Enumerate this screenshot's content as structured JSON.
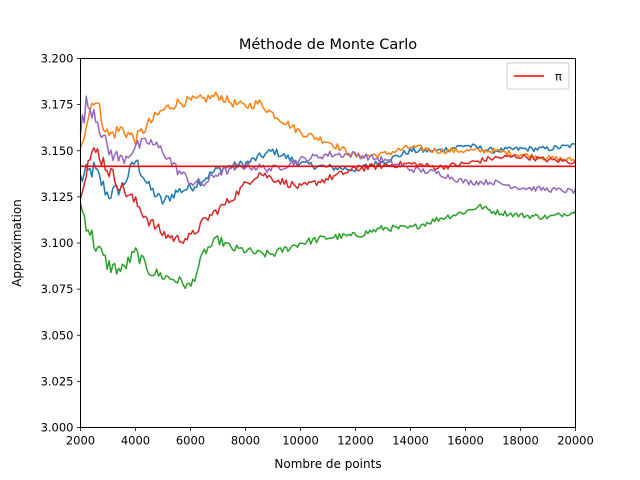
{
  "chart_data": {
    "type": "line",
    "title": "Méthode de Monte Carlo",
    "xlabel": "Nombre de points",
    "ylabel": "Approximation",
    "xlim": [
      2000,
      20000
    ],
    "ylim": [
      3.0,
      3.2
    ],
    "x_ticks": [
      2000,
      4000,
      6000,
      8000,
      10000,
      12000,
      14000,
      16000,
      18000,
      20000
    ],
    "y_ticks": [
      3.0,
      3.025,
      3.05,
      3.075,
      3.1,
      3.125,
      3.15,
      3.175,
      3.2
    ],
    "y_tick_labels": [
      "3.000",
      "3.025",
      "3.050",
      "3.075",
      "3.100",
      "3.125",
      "3.150",
      "3.175",
      "3.200"
    ],
    "grid": false,
    "legend_position": "top-right",
    "reference_line": {
      "label": "π",
      "y": 3.14159,
      "color": "#ff0000"
    },
    "series": [
      {
        "color": "#1f77b4",
        "x": [
          2000,
          2500,
          3000,
          3500,
          4000,
          4500,
          5000,
          5500,
          6000,
          6500,
          7000,
          8000,
          9000,
          10000,
          11000,
          12000,
          13000,
          14000,
          15000,
          16000,
          17000,
          18000,
          19000,
          20000
        ],
        "values": [
          3.135,
          3.14,
          3.126,
          3.13,
          3.145,
          3.13,
          3.122,
          3.128,
          3.13,
          3.135,
          3.14,
          3.143,
          3.15,
          3.143,
          3.141,
          3.14,
          3.144,
          3.15,
          3.15,
          3.153,
          3.15,
          3.151,
          3.151,
          3.153
        ]
      },
      {
        "color": "#ff7f0e",
        "x": [
          2000,
          2300,
          2500,
          3000,
          3500,
          4000,
          4500,
          5000,
          5500,
          6000,
          6500,
          7000,
          7500,
          8000,
          8500,
          9000,
          10000,
          11000,
          12000,
          13000,
          14000,
          15000,
          16000,
          17000,
          18000,
          19000,
          20000
        ],
        "values": [
          3.155,
          3.17,
          3.18,
          3.158,
          3.162,
          3.156,
          3.165,
          3.172,
          3.176,
          3.177,
          3.178,
          3.18,
          3.176,
          3.174,
          3.176,
          3.17,
          3.16,
          3.155,
          3.147,
          3.148,
          3.152,
          3.15,
          3.15,
          3.15,
          3.148,
          3.146,
          3.145
        ]
      },
      {
        "color": "#2ca02c",
        "x": [
          2000,
          2200,
          2500,
          3000,
          3500,
          4000,
          4500,
          5000,
          5500,
          6000,
          6500,
          7000,
          7500,
          8000,
          8500,
          9000,
          9500,
          10000,
          11000,
          12000,
          13000,
          14000,
          15000,
          16000,
          16500,
          17000,
          18000,
          19000,
          20000
        ],
        "values": [
          3.12,
          3.112,
          3.1,
          3.088,
          3.085,
          3.095,
          3.085,
          3.082,
          3.08,
          3.076,
          3.095,
          3.102,
          3.097,
          3.096,
          3.094,
          3.094,
          3.097,
          3.1,
          3.103,
          3.104,
          3.108,
          3.108,
          3.113,
          3.117,
          3.12,
          3.117,
          3.115,
          3.114,
          3.117
        ]
      },
      {
        "color": "#d62728",
        "x": [
          2000,
          2300,
          2600,
          3000,
          3500,
          4000,
          4500,
          5000,
          5500,
          6000,
          6500,
          7000,
          7500,
          8000,
          8500,
          9000,
          10000,
          11000,
          12000,
          13000,
          14000,
          15000,
          16000,
          17000,
          18000,
          19000,
          20000
        ],
        "values": [
          3.13,
          3.145,
          3.15,
          3.14,
          3.13,
          3.122,
          3.112,
          3.105,
          3.102,
          3.103,
          3.112,
          3.118,
          3.124,
          3.132,
          3.138,
          3.135,
          3.13,
          3.135,
          3.14,
          3.142,
          3.143,
          3.141,
          3.143,
          3.146,
          3.147,
          3.145,
          3.144
        ]
      },
      {
        "color": "#9467bd",
        "x": [
          2000,
          2200,
          2500,
          3000,
          3500,
          4000,
          4500,
          5000,
          5500,
          6000,
          6500,
          7000,
          7500,
          8000,
          9000,
          10000,
          11000,
          12000,
          13000,
          14000,
          15000,
          16000,
          17000,
          18000,
          19000,
          20000
        ],
        "values": [
          3.16,
          3.175,
          3.172,
          3.15,
          3.145,
          3.152,
          3.155,
          3.15,
          3.14,
          3.133,
          3.132,
          3.138,
          3.14,
          3.142,
          3.14,
          3.145,
          3.148,
          3.148,
          3.145,
          3.14,
          3.138,
          3.133,
          3.133,
          3.13,
          3.129,
          3.128
        ]
      }
    ]
  }
}
